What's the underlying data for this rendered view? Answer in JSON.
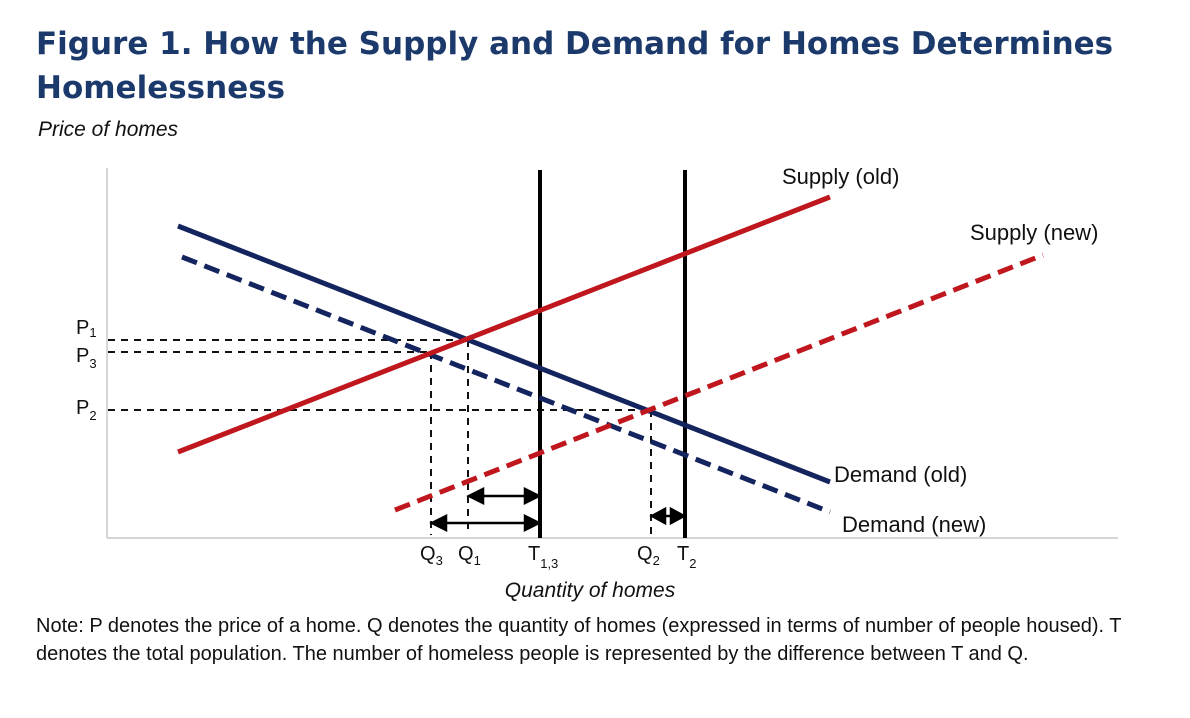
{
  "title": "Figure 1. How the Supply and Demand for Homes Determines Homelessness",
  "note": "Note: P denotes the price of a home. Q denotes the quantity of homes (expressed in terms of number of people housed). T denotes the total population. The number of homeless people is represented by the difference between T and Q.",
  "colors": {
    "title": "#1b3a6b",
    "demand": "#13245e",
    "supply": "#c0171f",
    "axis": "#333333",
    "guide": "#111111"
  },
  "chart_data": {
    "type": "line",
    "xlabel": "Quantity of homes",
    "ylabel": "Price of homes",
    "xlim": [
      0,
      100
    ],
    "ylim": [
      0,
      100
    ],
    "series": [
      {
        "name": "Supply (old)",
        "style": "solid",
        "color": "#c0171f",
        "x": [
          7,
          72
        ],
        "y": [
          24,
          91
        ]
      },
      {
        "name": "Supply (new)",
        "style": "dashed",
        "color": "#c0171f",
        "x": [
          28,
          92
        ],
        "y": [
          7,
          76
        ]
      },
      {
        "name": "Demand (old)",
        "style": "solid",
        "color": "#13245e",
        "x": [
          7,
          72
        ],
        "y": [
          84,
          15
        ]
      },
      {
        "name": "Demand (new)",
        "style": "dashed",
        "color": "#13245e",
        "x": [
          7,
          72
        ],
        "y": [
          77,
          6
        ]
      }
    ],
    "verticals": [
      {
        "name": "T1,3",
        "x": 43
      },
      {
        "name": "T2",
        "x": 57
      }
    ],
    "equilibria": [
      {
        "label": "P1",
        "qlabel": "Q1",
        "x": 36,
        "y": 55
      },
      {
        "label": "P3",
        "qlabel": "Q3",
        "x": 32.6,
        "y": 52.4
      },
      {
        "label": "P2",
        "qlabel": "Q2",
        "x": 53.7,
        "y": 35.7
      }
    ],
    "price_ticks": [
      {
        "main": "P",
        "sub": "1"
      },
      {
        "main": "P",
        "sub": "3"
      },
      {
        "main": "P",
        "sub": "2"
      }
    ],
    "quantity_ticks": [
      {
        "main": "Q",
        "sub": "3"
      },
      {
        "main": "Q",
        "sub": "1"
      },
      {
        "main": "T",
        "sub": "1,3"
      },
      {
        "main": "Q",
        "sub": "2"
      },
      {
        "main": "T",
        "sub": "2"
      }
    ]
  }
}
